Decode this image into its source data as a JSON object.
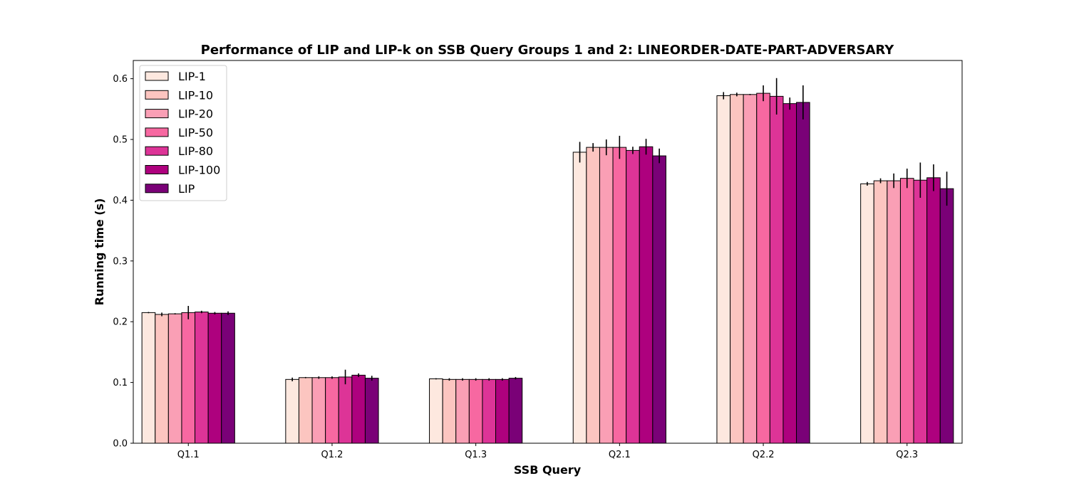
{
  "chart_data": {
    "type": "bar",
    "title": "Performance of LIP and LIP-k on SSB Query Groups 1 and 2: LINEORDER-DATE-PART-ADVERSARY",
    "xlabel": "SSB Query",
    "ylabel": "Running time (s)",
    "ylim": [
      0,
      0.63
    ],
    "yticks": [
      "0.0",
      "0.1",
      "0.2",
      "0.3",
      "0.4",
      "0.5",
      "0.6"
    ],
    "grid": false,
    "legend_position": "top-left",
    "categories": [
      "Q1.1",
      "Q1.2",
      "Q1.3",
      "Q2.1",
      "Q2.2",
      "Q2.3"
    ],
    "series": [
      {
        "name": "LIP-1",
        "color": "#fde8df",
        "values": [
          0.215,
          0.105,
          0.106,
          0.479,
          0.572,
          0.427
        ],
        "errors": [
          0.001,
          0.003,
          0.001,
          0.017,
          0.006,
          0.003
        ]
      },
      {
        "name": "LIP-10",
        "color": "#fcc5c0",
        "values": [
          0.212,
          0.108,
          0.105,
          0.487,
          0.574,
          0.432
        ],
        "errors": [
          0.003,
          0.001,
          0.002,
          0.007,
          0.003,
          0.004
        ]
      },
      {
        "name": "LIP-20",
        "color": "#fa9fb5",
        "values": [
          0.213,
          0.108,
          0.105,
          0.487,
          0.574,
          0.432
        ],
        "errors": [
          0.001,
          0.002,
          0.002,
          0.013,
          0.001,
          0.012
        ]
      },
      {
        "name": "LIP-50",
        "color": "#f768a1",
        "values": [
          0.215,
          0.108,
          0.105,
          0.487,
          0.576,
          0.436
        ],
        "errors": [
          0.011,
          0.002,
          0.002,
          0.019,
          0.013,
          0.016
        ]
      },
      {
        "name": "LIP-80",
        "color": "#dd3497",
        "values": [
          0.216,
          0.109,
          0.105,
          0.482,
          0.571,
          0.433
        ],
        "errors": [
          0.002,
          0.012,
          0.002,
          0.006,
          0.03,
          0.029
        ]
      },
      {
        "name": "LIP-100",
        "color": "#ae017e",
        "values": [
          0.214,
          0.112,
          0.105,
          0.488,
          0.559,
          0.437
        ],
        "errors": [
          0.002,
          0.003,
          0.002,
          0.013,
          0.01,
          0.022
        ]
      },
      {
        "name": "LIP",
        "color": "#7a0177",
        "values": [
          0.214,
          0.107,
          0.107,
          0.473,
          0.561,
          0.419
        ],
        "errors": [
          0.003,
          0.004,
          0.002,
          0.012,
          0.028,
          0.028
        ]
      }
    ]
  }
}
